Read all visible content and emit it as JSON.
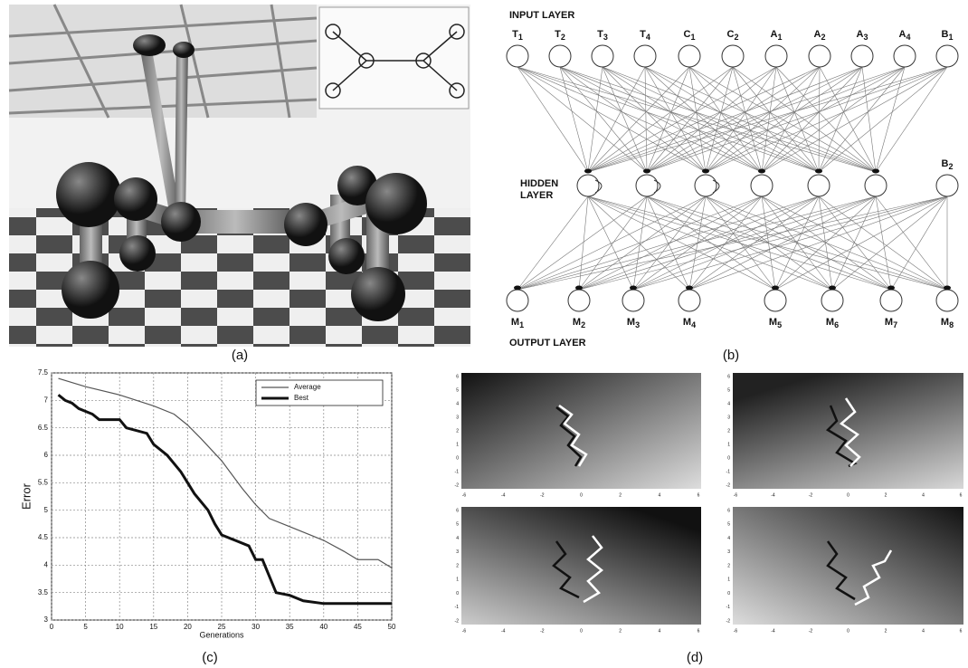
{
  "panel_labels": [
    "(a)",
    "(b)",
    "(c)",
    "(d)"
  ],
  "network": {
    "input_layer_label": "INPUT LAYER",
    "hidden_layer_label": [
      "HIDDEN",
      "LAYER"
    ],
    "output_layer_label": "OUTPUT LAYER",
    "inputs": [
      {
        "main": "T",
        "sub": "1"
      },
      {
        "main": "T",
        "sub": "2"
      },
      {
        "main": "T",
        "sub": "3"
      },
      {
        "main": "T",
        "sub": "4"
      },
      {
        "main": "C",
        "sub": "1"
      },
      {
        "main": "C",
        "sub": "2"
      },
      {
        "main": "A",
        "sub": "1"
      },
      {
        "main": "A",
        "sub": "2"
      },
      {
        "main": "A",
        "sub": "3"
      },
      {
        "main": "A",
        "sub": "4"
      },
      {
        "main": "B",
        "sub": "1"
      }
    ],
    "hidden_bias": {
      "main": "B",
      "sub": "2"
    },
    "outputs": [
      {
        "main": "M",
        "sub": "1"
      },
      {
        "main": "M",
        "sub": "2"
      },
      {
        "main": "M",
        "sub": "3"
      },
      {
        "main": "M",
        "sub": "4"
      },
      {
        "main": "M",
        "sub": "5"
      },
      {
        "main": "M",
        "sub": "6"
      },
      {
        "main": "M",
        "sub": "7"
      },
      {
        "main": "M",
        "sub": "8"
      }
    ]
  },
  "chart_data": {
    "type": "line",
    "xlabel": "Generations",
    "ylabel": "Error",
    "xlim": [
      0,
      50
    ],
    "ylim": [
      3,
      7.5
    ],
    "xticks": [
      0,
      5,
      10,
      15,
      20,
      25,
      30,
      35,
      40,
      45,
      50
    ],
    "yticks": [
      3,
      3.5,
      4,
      4.5,
      5,
      5.5,
      6,
      6.5,
      7,
      7.5
    ],
    "grid": true,
    "legend": "upper-right",
    "series": [
      {
        "name": "Average",
        "color": "#555555",
        "width": 1.2,
        "x": [
          1,
          5,
          10,
          15,
          18,
          20,
          22,
          25,
          28,
          30,
          32,
          35,
          38,
          40,
          43,
          45,
          48,
          50
        ],
        "values": [
          7.4,
          7.25,
          7.1,
          6.9,
          6.75,
          6.55,
          6.3,
          5.9,
          5.4,
          5.1,
          4.85,
          4.7,
          4.55,
          4.45,
          4.25,
          4.1,
          4.1,
          3.95
        ]
      },
      {
        "name": "Best",
        "color": "#111111",
        "width": 3,
        "x": [
          1,
          2,
          3,
          4,
          6,
          7,
          10,
          11,
          14,
          15,
          17,
          19,
          20,
          21,
          23,
          24,
          25,
          27,
          29,
          30,
          31,
          33,
          35,
          37,
          40,
          50
        ],
        "values": [
          7.1,
          7.0,
          6.95,
          6.85,
          6.75,
          6.65,
          6.65,
          6.5,
          6.4,
          6.2,
          6.0,
          5.7,
          5.5,
          5.3,
          5.0,
          4.75,
          4.55,
          4.45,
          4.35,
          4.1,
          4.1,
          3.5,
          3.45,
          3.35,
          3.3,
          3.3
        ]
      }
    ]
  },
  "heatmaps": {
    "xticks": [
      -6,
      -4,
      -2,
      0,
      2,
      4,
      6
    ],
    "yticks": [
      6,
      5,
      4,
      3,
      2,
      1,
      0,
      -1,
      -2
    ]
  }
}
